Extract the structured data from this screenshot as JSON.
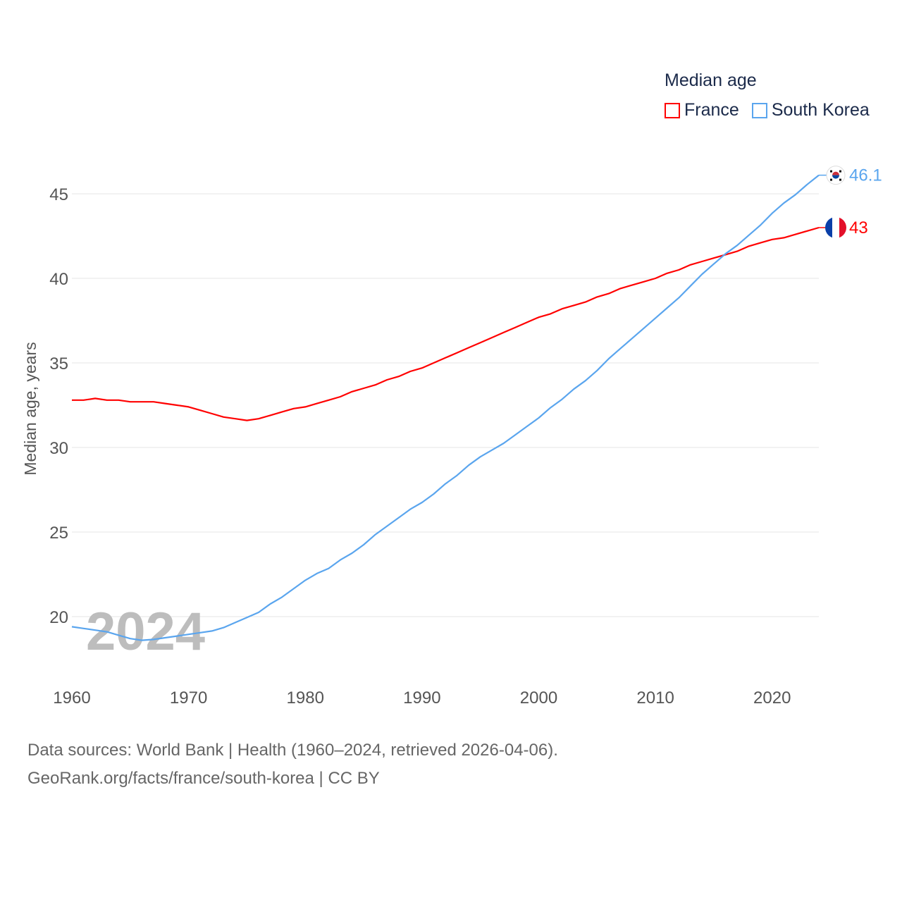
{
  "legend": {
    "title": "Median age",
    "items": [
      {
        "label": "France",
        "color": "#ff0000"
      },
      {
        "label": "South Korea",
        "color": "#5aa5ee"
      }
    ]
  },
  "source": {
    "line1": "Data sources: World Bank | Health (1960–2024, retrieved 2026-04-06).",
    "line2": "GeoRank.org/facts/france/south-korea | CC BY"
  },
  "chart_data": {
    "type": "line",
    "title": "Median age",
    "xlabel": "",
    "ylabel": "Median age, years",
    "xlim": [
      1960,
      2024
    ],
    "ylim": [
      17,
      47
    ],
    "xticks": [
      1960,
      1970,
      1980,
      1990,
      2000,
      2010,
      2020
    ],
    "yticks": [
      20,
      25,
      30,
      35,
      40,
      45
    ],
    "grid": true,
    "legend_position": "top-right",
    "watermark": "2024",
    "x": [
      1960,
      1961,
      1962,
      1963,
      1964,
      1965,
      1966,
      1967,
      1968,
      1969,
      1970,
      1971,
      1972,
      1973,
      1974,
      1975,
      1976,
      1977,
      1978,
      1979,
      1980,
      1981,
      1982,
      1983,
      1984,
      1985,
      1986,
      1987,
      1988,
      1989,
      1990,
      1991,
      1992,
      1993,
      1994,
      1995,
      1996,
      1997,
      1998,
      1999,
      2000,
      2001,
      2002,
      2003,
      2004,
      2005,
      2006,
      2007,
      2008,
      2009,
      2010,
      2011,
      2012,
      2013,
      2014,
      2015,
      2016,
      2017,
      2018,
      2019,
      2020,
      2021,
      2022,
      2023,
      2024
    ],
    "series": [
      {
        "name": "France",
        "color": "#ff0000",
        "end_label": "43",
        "values": [
          32.8,
          32.8,
          32.9,
          32.8,
          32.8,
          32.7,
          32.7,
          32.7,
          32.6,
          32.5,
          32.4,
          32.2,
          32.0,
          31.8,
          31.7,
          31.6,
          31.7,
          31.9,
          32.1,
          32.3,
          32.4,
          32.6,
          32.8,
          33.0,
          33.3,
          33.5,
          33.7,
          34.0,
          34.2,
          34.5,
          34.7,
          35.0,
          35.3,
          35.6,
          35.9,
          36.2,
          36.5,
          36.8,
          37.1,
          37.4,
          37.7,
          37.9,
          38.2,
          38.4,
          38.6,
          38.9,
          39.1,
          39.4,
          39.6,
          39.8,
          40.0,
          40.3,
          40.5,
          40.8,
          41.0,
          41.2,
          41.4,
          41.6,
          41.9,
          42.1,
          42.3,
          42.4,
          42.6,
          42.8,
          43.0
        ]
      },
      {
        "name": "South Korea",
        "color": "#5aa5ee",
        "end_label": "46.1",
        "values": [
          19.4,
          19.3,
          19.2,
          19.1,
          18.9,
          18.7,
          18.6,
          18.65,
          18.75,
          18.85,
          18.95,
          19.05,
          19.15,
          19.35,
          19.65,
          19.95,
          20.25,
          20.75,
          21.15,
          21.65,
          22.15,
          22.55,
          22.85,
          23.35,
          23.75,
          24.25,
          24.85,
          25.35,
          25.85,
          26.35,
          26.75,
          27.25,
          27.85,
          28.35,
          28.95,
          29.45,
          29.85,
          30.25,
          30.75,
          31.25,
          31.75,
          32.35,
          32.85,
          33.45,
          33.95,
          34.55,
          35.25,
          35.85,
          36.45,
          37.05,
          37.65,
          38.25,
          38.85,
          39.55,
          40.25,
          40.85,
          41.45,
          41.95,
          42.55,
          43.15,
          43.85,
          44.45,
          44.95,
          45.55,
          46.1
        ]
      }
    ]
  }
}
